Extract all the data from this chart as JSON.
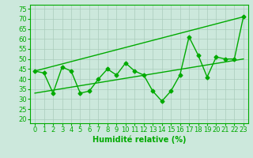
{
  "title": "",
  "xlabel": "Humidité relative (%)",
  "ylabel": "",
  "bg_color": "#cce8dc",
  "grid_color": "#aaccbb",
  "line_color": "#00aa00",
  "xlim": [
    -0.5,
    23.5
  ],
  "ylim": [
    18,
    77
  ],
  "yticks": [
    20,
    25,
    30,
    35,
    40,
    45,
    50,
    55,
    60,
    65,
    70,
    75
  ],
  "xticks": [
    0,
    1,
    2,
    3,
    4,
    5,
    6,
    7,
    8,
    9,
    10,
    11,
    12,
    13,
    14,
    15,
    16,
    17,
    18,
    19,
    20,
    21,
    22,
    23
  ],
  "line1": {
    "x": [
      0,
      1,
      2,
      3,
      4,
      5,
      6,
      7,
      8,
      9,
      10,
      11,
      12,
      13,
      14,
      15,
      16,
      17,
      18,
      19,
      20,
      21,
      22,
      23
    ],
    "y": [
      44,
      43,
      33,
      46,
      44,
      33,
      34,
      40,
      45,
      42,
      48,
      44,
      42,
      34,
      29,
      34,
      42,
      61,
      52,
      41,
      51,
      50,
      50,
      71
    ]
  },
  "line2": {
    "x": [
      0,
      23
    ],
    "y": [
      44,
      71
    ]
  },
  "line3": {
    "x": [
      0,
      23
    ],
    "y": [
      33,
      50
    ]
  },
  "xlabel_fontsize": 7,
  "tick_fontsize": 6,
  "marker": "D",
  "markersize": 2.5,
  "linewidth": 1.0
}
